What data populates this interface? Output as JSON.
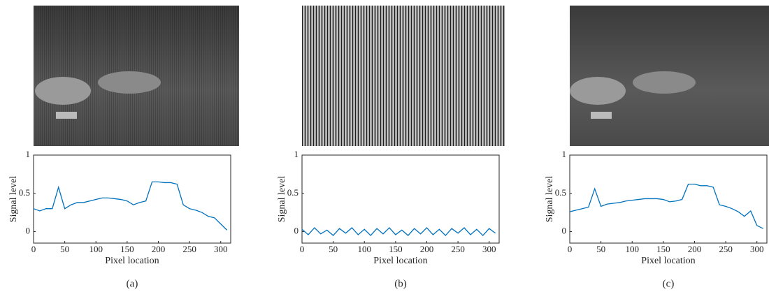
{
  "chart_data": [
    {
      "type": "line",
      "caption": "(a)",
      "x_label": "Pixel location",
      "y_label": "Signal level",
      "x": [
        0,
        10,
        20,
        30,
        40,
        50,
        60,
        70,
        80,
        90,
        100,
        110,
        120,
        130,
        140,
        150,
        160,
        170,
        180,
        190,
        200,
        210,
        220,
        230,
        240,
        250,
        260,
        270,
        280,
        290,
        300,
        310
      ],
      "series": [
        {
          "color": "#0072BD",
          "values": [
            0.3,
            0.27,
            0.3,
            0.3,
            0.58,
            0.3,
            0.35,
            0.38,
            0.38,
            0.4,
            0.42,
            0.44,
            0.44,
            0.43,
            0.42,
            0.4,
            0.35,
            0.38,
            0.4,
            0.65,
            0.65,
            0.64,
            0.64,
            0.62,
            0.35,
            0.3,
            0.28,
            0.25,
            0.2,
            0.18,
            0.1,
            0.02
          ]
        }
      ],
      "xlim": [
        0,
        316
      ],
      "ylim": [
        -0.15,
        1
      ],
      "xticks": [
        0,
        50,
        100,
        150,
        200,
        250,
        300
      ],
      "yticks": [
        0,
        0.5,
        1
      ]
    },
    {
      "type": "line",
      "caption": "(b)",
      "x_label": "Pixel location",
      "y_label": "Signal level",
      "x": [
        0,
        10,
        20,
        30,
        40,
        50,
        60,
        70,
        80,
        90,
        100,
        110,
        120,
        130,
        140,
        150,
        160,
        170,
        180,
        190,
        200,
        210,
        220,
        230,
        240,
        250,
        260,
        270,
        280,
        290,
        300,
        310
      ],
      "series": [
        {
          "color": "#0072BD",
          "values": [
            0.03,
            -0.04,
            0.05,
            -0.03,
            0.02,
            -0.05,
            0.04,
            -0.02,
            0.05,
            -0.04,
            0.03,
            -0.05,
            0.04,
            -0.03,
            0.05,
            -0.04,
            0.02,
            -0.05,
            0.04,
            -0.03,
            0.05,
            -0.04,
            0.03,
            -0.05,
            0.04,
            -0.02,
            0.05,
            -0.04,
            0.03,
            -0.05,
            0.04,
            -0.02
          ]
        }
      ],
      "xlim": [
        0,
        316
      ],
      "ylim": [
        -0.15,
        1
      ],
      "xticks": [
        0,
        50,
        100,
        150,
        200,
        250,
        300
      ],
      "yticks": [
        0,
        0.5,
        1
      ]
    },
    {
      "type": "line",
      "caption": "(c)",
      "x_label": "Pixel location",
      "y_label": "Signal level",
      "x": [
        0,
        10,
        20,
        30,
        40,
        50,
        60,
        70,
        80,
        90,
        100,
        110,
        120,
        130,
        140,
        150,
        160,
        170,
        180,
        190,
        200,
        210,
        220,
        230,
        240,
        250,
        260,
        270,
        280,
        290,
        300,
        310
      ],
      "series": [
        {
          "color": "#0072BD",
          "values": [
            0.26,
            0.28,
            0.3,
            0.32,
            0.56,
            0.33,
            0.36,
            0.37,
            0.38,
            0.4,
            0.41,
            0.42,
            0.43,
            0.43,
            0.43,
            0.42,
            0.39,
            0.4,
            0.42,
            0.62,
            0.62,
            0.6,
            0.6,
            0.58,
            0.35,
            0.33,
            0.3,
            0.26,
            0.2,
            0.27,
            0.08,
            0.04
          ]
        }
      ],
      "xlim": [
        0,
        316
      ],
      "ylim": [
        -0.15,
        1
      ],
      "xticks": [
        0,
        50,
        100,
        150,
        200,
        250,
        300
      ],
      "yticks": [
        0,
        0.5,
        1
      ]
    }
  ]
}
